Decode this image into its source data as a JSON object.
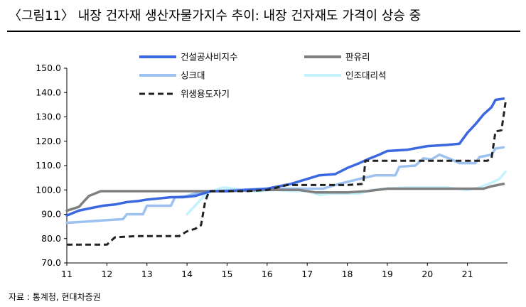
{
  "title": "〈그림11〉 내장 건자재 생산자물가지수 추이: 내장 건자재도 가격이 상승 중",
  "source": "자료 : 통계청, 현대차증권",
  "chart_data": {
    "type": "line",
    "title": "〈그림11〉 내장 건자재 생산자물가지수 추이: 내장 건자재도 가격이 상승 중",
    "xlabel": "",
    "ylabel": "",
    "xlim": [
      11,
      22
    ],
    "ylim": [
      70,
      150
    ],
    "x_ticks": [
      "11",
      "12",
      "13",
      "14",
      "15",
      "16",
      "17",
      "18",
      "19",
      "20",
      "21"
    ],
    "y_ticks": [
      "70.0",
      "80.0",
      "90.0",
      "100.0",
      "110.0",
      "120.0",
      "130.0",
      "140.0",
      "150.0"
    ],
    "grid": false,
    "legend_position": "top",
    "series": [
      {
        "name": "건설공사비지수",
        "color": "#3b68e0",
        "style": "solid",
        "points": [
          [
            11.0,
            89.5
          ],
          [
            11.3,
            91.5
          ],
          [
            11.6,
            92.5
          ],
          [
            11.9,
            93.5
          ],
          [
            12.2,
            94.0
          ],
          [
            12.5,
            95.0
          ],
          [
            12.8,
            95.5
          ],
          [
            13.0,
            96.0
          ],
          [
            13.3,
            96.5
          ],
          [
            13.6,
            97.0
          ],
          [
            13.9,
            97.0
          ],
          [
            14.2,
            97.5
          ],
          [
            14.4,
            98.5
          ],
          [
            14.6,
            99.5
          ],
          [
            15.0,
            99.5
          ],
          [
            15.5,
            100.0
          ],
          [
            16.0,
            100.5
          ],
          [
            16.3,
            101.5
          ],
          [
            16.6,
            102.5
          ],
          [
            17.0,
            104.5
          ],
          [
            17.3,
            106.0
          ],
          [
            17.7,
            106.5
          ],
          [
            18.0,
            109.0
          ],
          [
            18.3,
            111.0
          ],
          [
            18.5,
            112.5
          ],
          [
            18.8,
            114.5
          ],
          [
            19.0,
            116.0
          ],
          [
            19.5,
            116.5
          ],
          [
            20.0,
            118.0
          ],
          [
            20.5,
            118.5
          ],
          [
            20.8,
            119.0
          ],
          [
            21.0,
            123.5
          ],
          [
            21.2,
            127.0
          ],
          [
            21.4,
            131.0
          ],
          [
            21.6,
            134.0
          ],
          [
            21.7,
            137.0
          ],
          [
            21.9,
            137.5
          ]
        ]
      },
      {
        "name": "판유리",
        "color": "#808080",
        "style": "solid",
        "points": [
          [
            11.0,
            91.5
          ],
          [
            11.3,
            93.0
          ],
          [
            11.55,
            97.5
          ],
          [
            11.85,
            99.5
          ],
          [
            12.5,
            99.5
          ],
          [
            13.5,
            99.5
          ],
          [
            14.5,
            99.5
          ],
          [
            15.0,
            99.5
          ],
          [
            16.0,
            100.0
          ],
          [
            16.8,
            100.0
          ],
          [
            17.2,
            99.0
          ],
          [
            17.6,
            99.0
          ],
          [
            18.0,
            99.0
          ],
          [
            18.5,
            99.5
          ],
          [
            19.0,
            100.5
          ],
          [
            19.5,
            100.5
          ],
          [
            20.0,
            100.5
          ],
          [
            20.5,
            100.5
          ],
          [
            21.0,
            100.5
          ],
          [
            21.4,
            100.5
          ],
          [
            21.6,
            101.5
          ],
          [
            21.9,
            102.5
          ]
        ]
      },
      {
        "name": "싱크대",
        "color": "#9dc2ef",
        "style": "solid",
        "points": [
          [
            11.0,
            86.5
          ],
          [
            11.5,
            87.0
          ],
          [
            11.9,
            87.5
          ],
          [
            12.4,
            88.0
          ],
          [
            12.5,
            90.0
          ],
          [
            12.9,
            90.0
          ],
          [
            13.0,
            93.5
          ],
          [
            13.6,
            93.5
          ],
          [
            13.7,
            97.0
          ],
          [
            14.0,
            97.5
          ],
          [
            14.3,
            99.0
          ],
          [
            14.6,
            99.5
          ],
          [
            15.2,
            100.0
          ],
          [
            16.0,
            100.5
          ],
          [
            16.8,
            100.5
          ],
          [
            17.4,
            100.5
          ],
          [
            17.8,
            102.5
          ],
          [
            18.3,
            104.5
          ],
          [
            18.7,
            106.0
          ],
          [
            19.2,
            106.0
          ],
          [
            19.3,
            109.5
          ],
          [
            19.7,
            110.0
          ],
          [
            19.9,
            113.0
          ],
          [
            20.1,
            112.5
          ],
          [
            20.3,
            114.5
          ],
          [
            20.6,
            112.5
          ],
          [
            20.8,
            111.0
          ],
          [
            21.2,
            111.0
          ],
          [
            21.3,
            113.5
          ],
          [
            21.6,
            114.5
          ],
          [
            21.7,
            117.0
          ],
          [
            21.9,
            117.5
          ]
        ]
      },
      {
        "name": "인조대리석",
        "color": "#c4f3fd",
        "style": "solid",
        "points": [
          [
            14.0,
            90.0
          ],
          [
            14.2,
            93.5
          ],
          [
            14.4,
            97.0
          ],
          [
            14.6,
            99.5
          ],
          [
            14.9,
            101.0
          ],
          [
            15.2,
            100.5
          ],
          [
            15.5,
            99.5
          ],
          [
            15.8,
            99.5
          ],
          [
            16.2,
            100.0
          ],
          [
            16.6,
            99.5
          ],
          [
            17.0,
            99.5
          ],
          [
            17.3,
            98.0
          ],
          [
            17.6,
            98.5
          ],
          [
            18.0,
            98.5
          ],
          [
            18.3,
            98.5
          ],
          [
            18.6,
            100.0
          ],
          [
            19.0,
            100.5
          ],
          [
            19.5,
            101.0
          ],
          [
            20.0,
            101.0
          ],
          [
            20.5,
            101.0
          ],
          [
            21.0,
            100.0
          ],
          [
            21.3,
            101.0
          ],
          [
            21.6,
            103.0
          ],
          [
            21.8,
            104.5
          ],
          [
            21.95,
            107.5
          ]
        ]
      },
      {
        "name": "위생용도자기",
        "color": "#222222",
        "style": "dashed",
        "points": [
          [
            11.0,
            77.5
          ],
          [
            11.5,
            77.5
          ],
          [
            12.0,
            77.5
          ],
          [
            12.2,
            80.5
          ],
          [
            12.7,
            81.0
          ],
          [
            13.2,
            81.0
          ],
          [
            13.8,
            81.0
          ],
          [
            14.0,
            83.0
          ],
          [
            14.2,
            84.0
          ],
          [
            14.35,
            85.5
          ],
          [
            14.45,
            95.0
          ],
          [
            14.55,
            99.5
          ],
          [
            15.0,
            99.5
          ],
          [
            15.5,
            99.5
          ],
          [
            16.0,
            100.0
          ],
          [
            16.5,
            102.0
          ],
          [
            17.0,
            102.0
          ],
          [
            17.5,
            102.0
          ],
          [
            18.0,
            102.0
          ],
          [
            18.4,
            102.5
          ],
          [
            18.45,
            112.0
          ],
          [
            19.0,
            112.0
          ],
          [
            19.5,
            112.0
          ],
          [
            20.0,
            112.0
          ],
          [
            20.5,
            112.0
          ],
          [
            21.0,
            112.0
          ],
          [
            21.5,
            112.0
          ],
          [
            21.6,
            113.0
          ],
          [
            21.7,
            124.0
          ],
          [
            21.85,
            124.5
          ],
          [
            21.95,
            136.0
          ]
        ]
      }
    ]
  }
}
